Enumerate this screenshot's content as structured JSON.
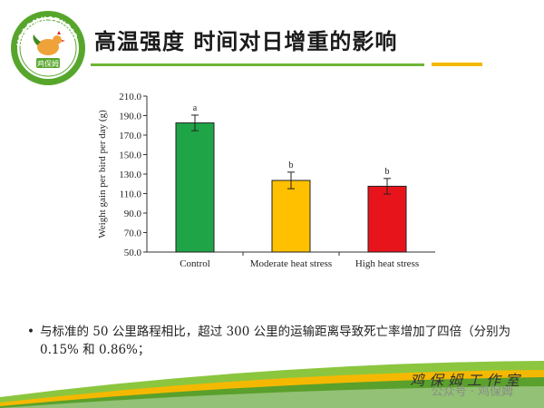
{
  "slide": {
    "title": "高温强度 时间对日增重的影响",
    "logo_text": "JIBAOMUSTUDIO",
    "logo_center": "鸡保姆",
    "bullet": "与标准的 50 公里路程相比，超过 300 公里的运输距离导致死亡率增加了四倍（分别为 0.15% 和 0.86%；",
    "signature": "鸡保姆工作室",
    "watermark": "公众号 · 鸡保姆"
  },
  "colors": {
    "accent_green": "#6fb536",
    "accent_yellow": "#f5b800"
  },
  "chart_data": {
    "type": "bar",
    "ylabel": "Weight gain per bird per day (g)",
    "xlabel": "",
    "ylim": [
      50,
      210
    ],
    "yticks": [
      50.0,
      70.0,
      90.0,
      110.0,
      130.0,
      150.0,
      170.0,
      190.0,
      210.0
    ],
    "ytick_labels": [
      "50.0",
      "70.0",
      "90.0",
      "110.0",
      "130.0",
      "150.0",
      "170.0",
      "190.0",
      "210.0"
    ],
    "categories": [
      "Control",
      "Moderate heat stress",
      "High heat stress"
    ],
    "values": [
      182.5,
      123.5,
      117.5
    ],
    "errors": [
      8,
      8.5,
      8
    ],
    "annotations": [
      "a",
      "b",
      "b"
    ],
    "bar_colors": [
      "#1fa448",
      "#ffc000",
      "#e8141c"
    ]
  }
}
